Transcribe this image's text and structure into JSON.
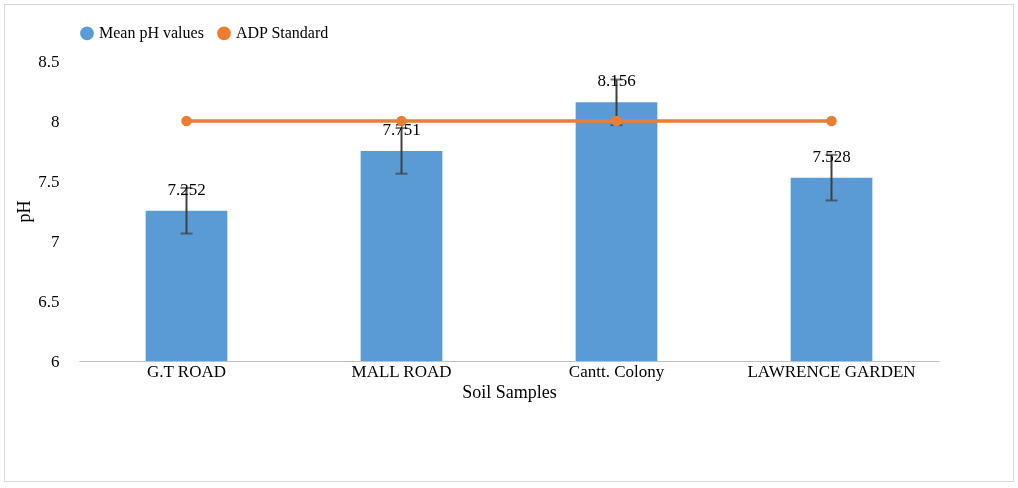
{
  "chart_data": {
    "type": "bar",
    "xlabel": "Soil Samples",
    "ylabel": "pH",
    "categories": [
      "G.T ROAD",
      "MALL ROAD",
      "Cantt. Colony",
      "LAWRENCE GARDEN"
    ],
    "series": [
      {
        "name": "Mean pH values",
        "color": "#5b9bd5",
        "values": [
          7.252,
          7.751,
          8.156,
          7.528
        ],
        "errors": [
          0.19,
          0.19,
          0.19,
          0.19
        ],
        "value_labels": [
          "7.252",
          "7.751",
          "8.156",
          "7.528"
        ]
      },
      {
        "name": "ADP Standard",
        "type": "line",
        "color": "#ed7d31",
        "values": [
          8,
          8,
          8,
          8
        ],
        "marker": "circle"
      }
    ],
    "ylim": [
      6,
      8.5
    ],
    "yticks": [
      6,
      6.5,
      7,
      7.5,
      8,
      8.5
    ],
    "grid": false,
    "legend": "top"
  }
}
